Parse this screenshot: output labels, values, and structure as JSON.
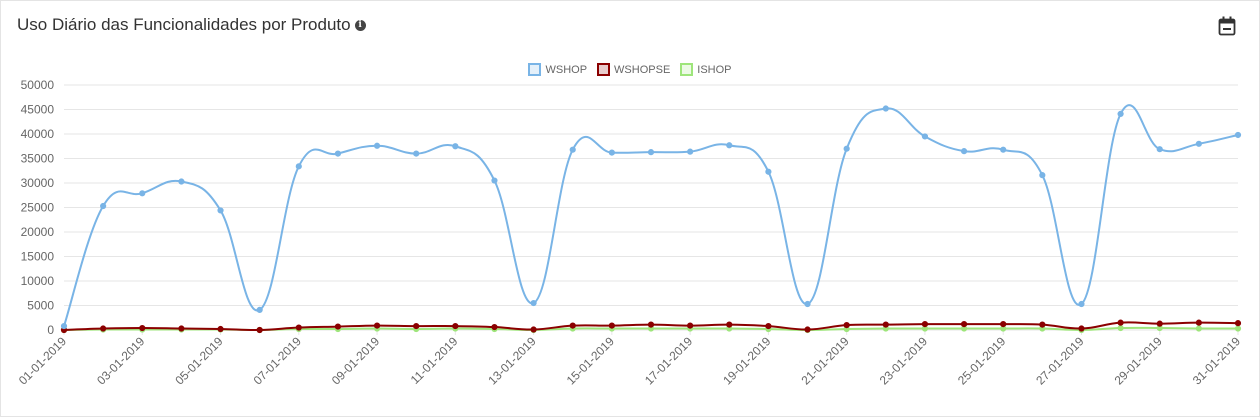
{
  "header": {
    "title": "Uso Diário das Funcionalidades por Produto",
    "info_icon": "info-circle-icon",
    "calendar_icon": "calendar-minus-icon"
  },
  "legend": [
    {
      "label": "WSHOP",
      "color": "#79b4e6"
    },
    {
      "label": "WSHOPSE",
      "color": "#8b0000"
    },
    {
      "label": "ISHOP",
      "color": "#9ee57b"
    }
  ],
  "chart_data": {
    "type": "line",
    "title": "Uso Diário das Funcionalidades por Produto",
    "xlabel": "",
    "ylabel": "",
    "ylim": [
      0,
      50000
    ],
    "yticks": [
      "0",
      "5000",
      "10000",
      "15000",
      "20000",
      "25000",
      "30000",
      "35000",
      "40000",
      "45000",
      "50000"
    ],
    "x": [
      "01-01-2019",
      "02-01-2019",
      "03-01-2019",
      "04-01-2019",
      "05-01-2019",
      "06-01-2019",
      "07-01-2019",
      "08-01-2019",
      "09-01-2019",
      "10-01-2019",
      "11-01-2019",
      "12-01-2019",
      "13-01-2019",
      "14-01-2019",
      "15-01-2019",
      "16-01-2019",
      "17-01-2019",
      "18-01-2019",
      "19-01-2019",
      "20-01-2019",
      "21-01-2019",
      "22-01-2019",
      "23-01-2019",
      "24-01-2019",
      "25-01-2019",
      "26-01-2019",
      "27-01-2019",
      "28-01-2019",
      "29-01-2019",
      "30-01-2019",
      "31-01-2019"
    ],
    "xticks": [
      "01-01-2019",
      "03-01-2019",
      "05-01-2019",
      "07-01-2019",
      "09-01-2019",
      "11-01-2019",
      "13-01-2019",
      "15-01-2019",
      "17-01-2019",
      "19-01-2019",
      "21-01-2019",
      "23-01-2019",
      "25-01-2019",
      "27-01-2019",
      "29-01-2019",
      "31-01-2019"
    ],
    "grid": true,
    "legend_position": "top-center",
    "series": [
      {
        "name": "WSHOP",
        "color": "#79b4e6",
        "values": [
          800,
          25300,
          27900,
          30300,
          24400,
          4100,
          33400,
          36000,
          37600,
          36000,
          37500,
          30500,
          5500,
          36800,
          36200,
          36300,
          36400,
          37700,
          32300,
          5300,
          37000,
          45200,
          39500,
          36500,
          36800,
          31600,
          5300,
          44100,
          36900,
          38000,
          39800
        ]
      },
      {
        "name": "WSHOPSE",
        "color": "#8b0000",
        "values": [
          0,
          300,
          400,
          300,
          200,
          0,
          500,
          700,
          900,
          800,
          800,
          600,
          100,
          900,
          900,
          1100,
          900,
          1100,
          800,
          100,
          1000,
          1100,
          1200,
          1200,
          1200,
          1100,
          300,
          1500,
          1300,
          1500,
          1400
        ]
      },
      {
        "name": "ISHOP",
        "color": "#9ee57b",
        "values": [
          0,
          100,
          100,
          100,
          100,
          0,
          200,
          200,
          300,
          200,
          300,
          200,
          0,
          300,
          300,
          300,
          300,
          300,
          200,
          0,
          200,
          300,
          300,
          300,
          300,
          300,
          0,
          400,
          400,
          300,
          300
        ]
      }
    ]
  }
}
